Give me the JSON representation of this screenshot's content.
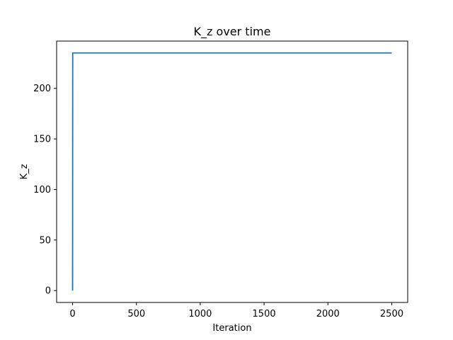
{
  "chart_data": {
    "type": "line",
    "title": "K_z over time",
    "xlabel": "Iteration",
    "ylabel": "K_z",
    "xlim": [
      -125,
      2625
    ],
    "ylim": [
      -11.75,
      246.75
    ],
    "x_ticks": [
      0,
      500,
      1000,
      1500,
      2000,
      2500
    ],
    "x_tick_labels": [
      "0",
      "500",
      "1000",
      "1500",
      "2000",
      "2500"
    ],
    "y_ticks": [
      0,
      50,
      100,
      150,
      200
    ],
    "y_tick_labels": [
      "0",
      "50",
      "100",
      "150",
      "200"
    ],
    "grid": false,
    "series": [
      {
        "color": "#1f77b4",
        "x": [
          0,
          1,
          2500
        ],
        "y": [
          0,
          235,
          235
        ]
      }
    ]
  }
}
